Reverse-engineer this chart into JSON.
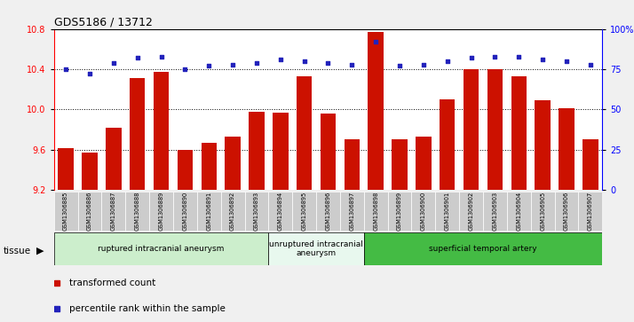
{
  "title": "GDS5186 / 13712",
  "samples": [
    "GSM1306885",
    "GSM1306886",
    "GSM1306887",
    "GSM1306888",
    "GSM1306889",
    "GSM1306890",
    "GSM1306891",
    "GSM1306892",
    "GSM1306893",
    "GSM1306894",
    "GSM1306895",
    "GSM1306896",
    "GSM1306897",
    "GSM1306898",
    "GSM1306899",
    "GSM1306900",
    "GSM1306901",
    "GSM1306902",
    "GSM1306903",
    "GSM1306904",
    "GSM1306905",
    "GSM1306906",
    "GSM1306907"
  ],
  "transformed_count": [
    9.62,
    9.57,
    9.82,
    10.31,
    10.37,
    9.6,
    9.67,
    9.73,
    9.98,
    9.97,
    10.33,
    9.96,
    9.7,
    10.77,
    9.7,
    9.73,
    10.1,
    10.4,
    10.4,
    10.33,
    10.09,
    10.01,
    9.7
  ],
  "percentile_rank": [
    75,
    72,
    79,
    82,
    83,
    75,
    77,
    78,
    79,
    81,
    80,
    79,
    78,
    92,
    77,
    78,
    80,
    82,
    83,
    83,
    81,
    80,
    78
  ],
  "ylim_left": [
    9.2,
    10.8
  ],
  "ylim_right": [
    0,
    100
  ],
  "bar_color": "#cc1100",
  "dot_color": "#2222bb",
  "tissue_groups": [
    {
      "label": "ruptured intracranial aneurysm",
      "start": 0,
      "end": 9,
      "color": "#cceecc"
    },
    {
      "label": "unruptured intracranial\naneurysm",
      "start": 9,
      "end": 13,
      "color": "#e8f8ee"
    },
    {
      "label": "superficial temporal artery",
      "start": 13,
      "end": 23,
      "color": "#44bb44"
    }
  ],
  "legend_labels": [
    "transformed count",
    "percentile rank within the sample"
  ],
  "legend_colors": [
    "#cc1100",
    "#2222bb"
  ],
  "yticks_left": [
    9.2,
    9.6,
    10.0,
    10.4,
    10.8
  ],
  "yticks_right": [
    0,
    25,
    50,
    75,
    100
  ],
  "ytick_right_labels": [
    "0",
    "25",
    "50",
    "75",
    "100%"
  ],
  "fig_bg": "#f0f0f0",
  "plot_bg": "#ffffff",
  "xtick_bg": "#cccccc"
}
